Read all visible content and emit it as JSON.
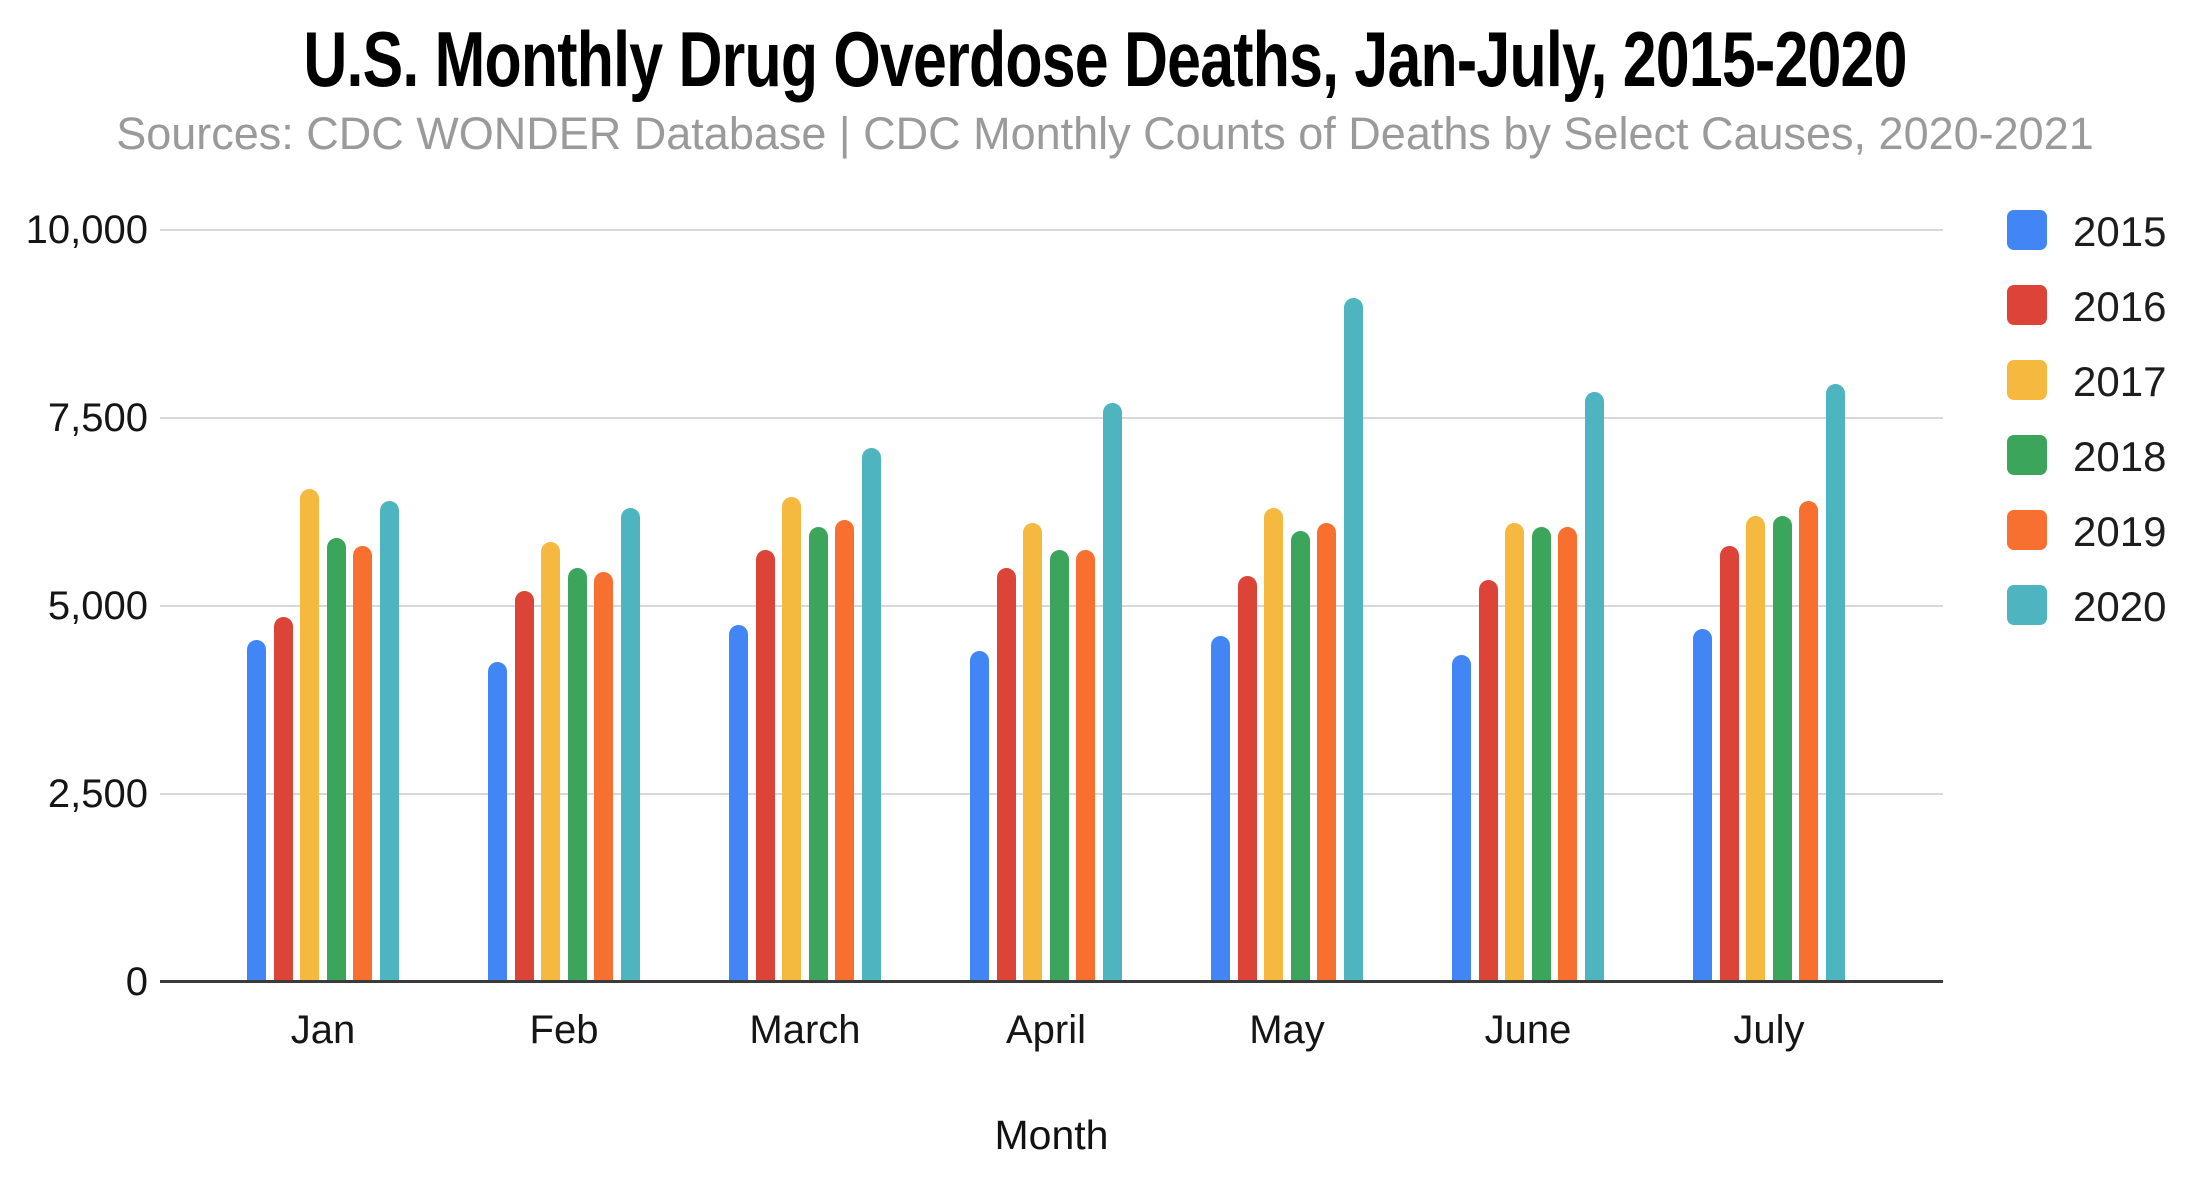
{
  "chart_data": {
    "type": "bar",
    "title": "U.S. Monthly Drug Overdose Deaths, Jan-July, 2015-2020",
    "subtitle": "Sources: CDC WONDER Database | CDC Monthly Counts of Deaths by Select Causes, 2020-2021",
    "categories": [
      "Jan",
      "Feb",
      "March",
      "April",
      "May",
      "June",
      "July"
    ],
    "series": [
      {
        "name": "2015",
        "color": "#4285F4",
        "values": [
          4550,
          4250,
          4750,
          4400,
          4600,
          4350,
          4700
        ]
      },
      {
        "name": "2016",
        "color": "#DB4437",
        "values": [
          4850,
          5200,
          5750,
          5500,
          5400,
          5350,
          5800
        ]
      },
      {
        "name": "2017",
        "color": "#F6B93F",
        "values": [
          6550,
          5850,
          6450,
          6100,
          6300,
          6100,
          6200
        ]
      },
      {
        "name": "2018",
        "color": "#3BA55B",
        "values": [
          5900,
          5500,
          6050,
          5750,
          6000,
          6050,
          6200
        ]
      },
      {
        "name": "2019",
        "color": "#F7702F",
        "values": [
          5800,
          5450,
          6150,
          5750,
          6100,
          6050,
          6400
        ]
      },
      {
        "name": "2020",
        "color": "#4EB5C0",
        "values": [
          6400,
          6300,
          7100,
          7700,
          9100,
          7850,
          7950
        ]
      }
    ],
    "xlabel": "Month",
    "ylabel": "",
    "ylim": [
      0,
      10000
    ],
    "yticks": [
      {
        "value": 0,
        "label": "0"
      },
      {
        "value": 2500,
        "label": "2,500"
      },
      {
        "value": 5000,
        "label": "5,000"
      },
      {
        "value": 7500,
        "label": "7,500"
      },
      {
        "value": 10000,
        "label": "10,000"
      }
    ],
    "grid": true,
    "legend_position": "right"
  },
  "style": {
    "background": "#FFFFFF",
    "title_color": "#000000",
    "subtitle_color": "#9A9A9A",
    "axis_text_color": "#151515",
    "gridline_color": "#D8D8D8",
    "axis_line_color": "#3B3B3B"
  }
}
